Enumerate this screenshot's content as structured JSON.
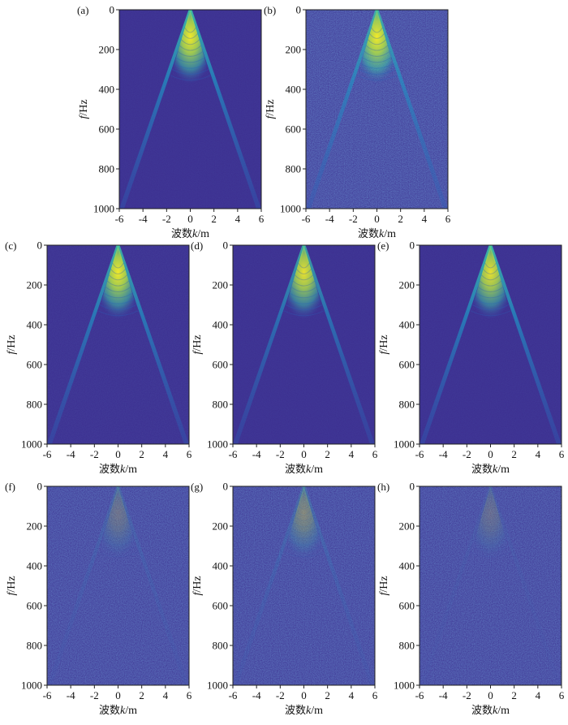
{
  "chart_data": {
    "type": "heatmap",
    "colormap": [
      "#3b2d8f",
      "#2c5fb8",
      "#1f97c6",
      "#3cc2a6",
      "#a9d84a",
      "#f2e92a"
    ],
    "x_ticks": [
      "-6",
      "-4",
      "-2",
      "0",
      "2",
      "4",
      "6"
    ],
    "y_ticks": [
      "0",
      "200",
      "400",
      "600",
      "800",
      "1000"
    ],
    "xlim": [
      -6,
      6
    ],
    "ylim": [
      1000,
      0
    ],
    "xlabel_prefix": "波数",
    "xlabel_var": "k",
    "xlabel_unit": "/m",
    "ylabel_var": "f",
    "ylabel_unit": "/Hz",
    "panels": [
      {
        "id": "a",
        "label": "(a)",
        "noise": 0.05,
        "cone": 1.0,
        "peak": 1.0
      },
      {
        "id": "b",
        "label": "(b)",
        "noise": 0.32,
        "cone": 0.9,
        "peak": 1.0
      },
      {
        "id": "c",
        "label": "(c)",
        "noise": 0.07,
        "cone": 0.95,
        "peak": 1.0
      },
      {
        "id": "d",
        "label": "(d)",
        "noise": 0.05,
        "cone": 0.85,
        "peak": 0.95
      },
      {
        "id": "e",
        "label": "(e)",
        "noise": 0.05,
        "cone": 1.0,
        "peak": 0.95
      },
      {
        "id": "f",
        "label": "(f)",
        "noise": 0.3,
        "cone": 0.18,
        "peak": 0.22
      },
      {
        "id": "g",
        "label": "(g)",
        "noise": 0.3,
        "cone": 0.25,
        "peak": 0.35
      },
      {
        "id": "h",
        "label": "(h)",
        "noise": 0.3,
        "cone": 0.08,
        "peak": 0.18
      }
    ]
  }
}
